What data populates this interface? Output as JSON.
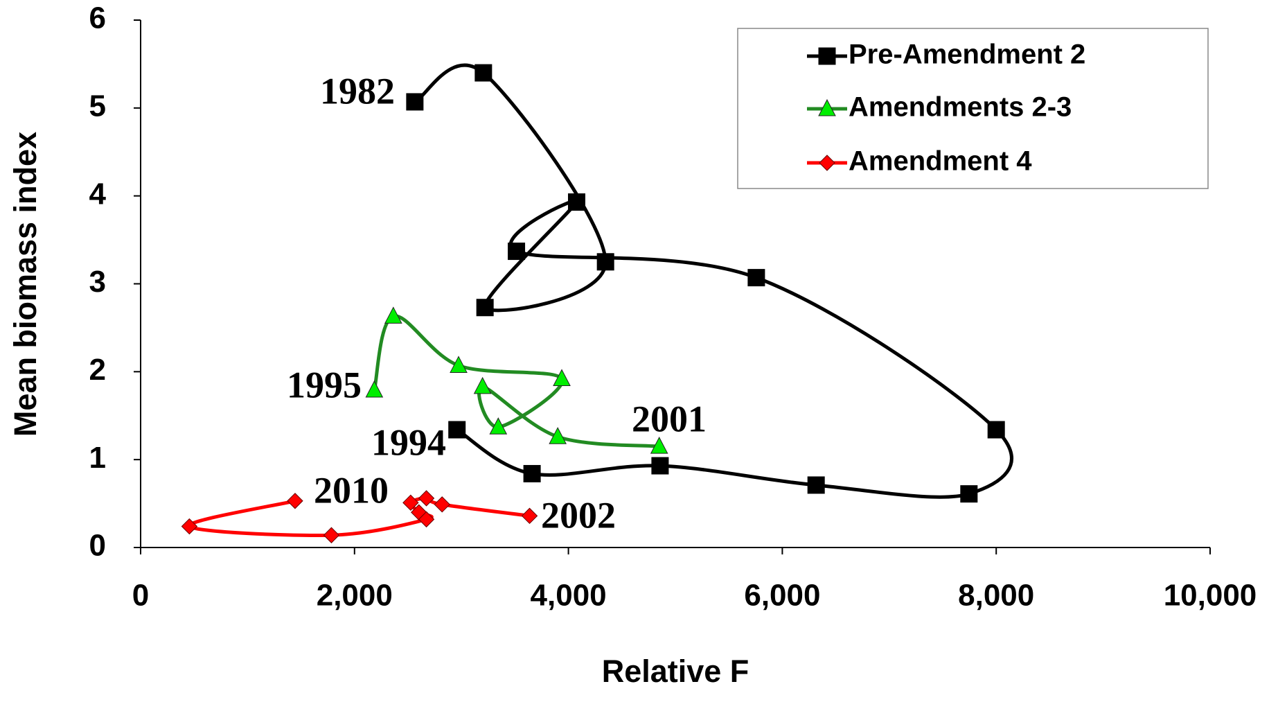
{
  "chart_data": {
    "type": "line",
    "xlabel": "Relative F",
    "ylabel": "Mean biomass index",
    "xlim": [
      0,
      10000
    ],
    "ylim": [
      0,
      6
    ],
    "xticks": [
      0,
      {
        "value": 2000,
        "label": "2,000"
      },
      {
        "value": 4000,
        "label": "4,000"
      },
      {
        "value": 6000,
        "label": "6,000"
      },
      {
        "value": 8000,
        "label": "8,000"
      },
      {
        "value": 10000,
        "label": "10,000"
      }
    ],
    "yticks": [
      0,
      1,
      2,
      3,
      4,
      5,
      6
    ],
    "legend": "upper right",
    "series": [
      {
        "name": "Pre-Amendment 2",
        "color": "#000000",
        "marker": "square",
        "x": [
          2564,
          3205,
          4347,
          3220,
          4077,
          3514,
          5757,
          8000,
          7745,
          6316,
          4857,
          3660,
          2958
        ],
        "values": [
          5.07,
          5.4,
          3.25,
          2.73,
          3.93,
          3.37,
          3.07,
          1.34,
          0.61,
          0.71,
          0.93,
          0.84,
          1.34
        ]
      },
      {
        "name": "Amendments 2-3",
        "color": "#00ee00",
        "line_color": "#228b22",
        "marker": "triangle",
        "x": [
          2185,
          2363,
          2973,
          3938,
          3344,
          3197,
          3900,
          4849
        ],
        "values": [
          1.79,
          2.63,
          2.07,
          1.92,
          1.37,
          1.83,
          1.26,
          1.15
        ]
      },
      {
        "name": "Amendment 4",
        "color": "#ff0000",
        "marker": "diamond",
        "x": [
          3637,
          2819,
          2672,
          2525,
          2602,
          2672,
          1784,
          456,
          1444
        ],
        "values": [
          0.36,
          0.49,
          0.56,
          0.51,
          0.4,
          0.32,
          0.14,
          0.24,
          0.53
        ]
      }
    ],
    "annotations": [
      "1982",
      "1994",
      "1995",
      "2001",
      "2010",
      "2002"
    ]
  }
}
